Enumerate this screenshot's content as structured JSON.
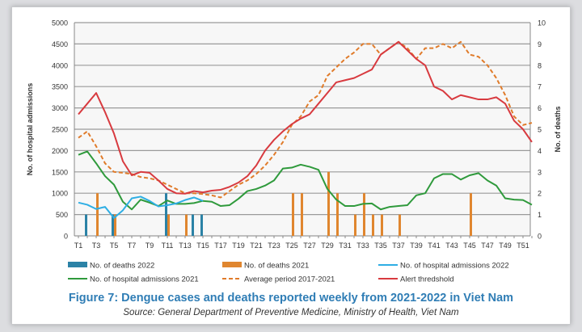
{
  "chart_data": {
    "type": "bar+line",
    "title": "Figure 7: Dengue cases and deaths reported weekly from 2021-2022 in Viet Nam",
    "source": "Source: General Department of Preventive Medicine, Ministry of Health, Viet Nam",
    "ylabel": "No. of hospital admissions",
    "y2label": "No. of deaths",
    "ylim": [
      0,
      5000
    ],
    "y2lim": [
      0,
      10
    ],
    "yticks": [
      "0",
      "500",
      "1000",
      "1500",
      "2000",
      "2500",
      "3000",
      "3500",
      "4000",
      "4500",
      "5000"
    ],
    "y2ticks": [
      "0",
      "1",
      "2",
      "3",
      "4",
      "5",
      "6",
      "7",
      "8",
      "9",
      "10"
    ],
    "xticks": [
      "T1",
      "T3",
      "T5",
      "T7",
      "T9",
      "T11",
      "T13",
      "T15",
      "T17",
      "T19",
      "T21",
      "T23",
      "T25",
      "T27",
      "T29",
      "T31",
      "T33",
      "T35",
      "T37",
      "T39",
      "T41",
      "T43",
      "T45",
      "T47",
      "T49",
      "T51"
    ],
    "weeks": 52,
    "grid": true,
    "legend_position": "bottom",
    "bars": [
      {
        "name": "No. of deaths 2022",
        "color": "#2b82a6",
        "axis": "right",
        "values": {
          "2": 1,
          "5": 1,
          "11": 2,
          "14": 1,
          "15": 1
        }
      },
      {
        "name": "No. of deaths 2021",
        "color": "#e0862f",
        "axis": "right",
        "values": {
          "3": 2,
          "5": 1,
          "11": 1,
          "13": 1,
          "25": 2,
          "26": 2,
          "29": 3,
          "30": 2,
          "32": 1,
          "33": 2,
          "34": 1,
          "35": 1,
          "37": 1,
          "45": 2
        }
      }
    ],
    "series": [
      {
        "name": "No. of hospital admissions 2022",
        "color": "#2eaee4",
        "dash": false,
        "values": [
          780,
          730,
          630,
          680,
          420,
          600,
          880,
          920,
          820,
          690,
          720,
          760,
          840,
          900,
          820
        ]
      },
      {
        "name": "No. of hospital admissions 2021",
        "color": "#2f9a3c",
        "dash": false,
        "values": [
          1900,
          1980,
          1700,
          1400,
          1200,
          800,
          620,
          850,
          780,
          700,
          830,
          750,
          750,
          770,
          820,
          800,
          700,
          720,
          870,
          1050,
          1100,
          1180,
          1300,
          1580,
          1600,
          1670,
          1620,
          1550,
          1100,
          850,
          700,
          700,
          750,
          760,
          620,
          680,
          700,
          720,
          950,
          1000,
          1350,
          1450,
          1450,
          1320,
          1420,
          1470,
          1300,
          1180,
          880,
          850,
          840,
          730
        ]
      },
      {
        "name": "Average period 2017-2021",
        "color": "#e07b2a",
        "dash": true,
        "values": [
          2300,
          2450,
          2100,
          1700,
          1500,
          1480,
          1450,
          1380,
          1350,
          1300,
          1200,
          1100,
          1000,
          1000,
          980,
          950,
          900,
          1050,
          1200,
          1300,
          1450,
          1650,
          1900,
          2200,
          2600,
          2800,
          3150,
          3300,
          3750,
          3950,
          4150,
          4300,
          4500,
          4500,
          4250,
          4400,
          4550,
          4400,
          4150,
          4400,
          4400,
          4500,
          4400,
          4550,
          4250,
          4200,
          4000,
          3700,
          3300,
          2800,
          2600,
          2650
        ]
      },
      {
        "name": "Alert thredshold",
        "color": "#d83a3f",
        "dash": false,
        "values": [
          2850,
          3100,
          3350,
          2900,
          2400,
          1750,
          1420,
          1500,
          1480,
          1300,
          1100,
          1000,
          990,
          1050,
          1020,
          1060,
          1080,
          1150,
          1250,
          1400,
          1650,
          2000,
          2250,
          2450,
          2620,
          2750,
          2850,
          3100,
          3350,
          3600,
          3650,
          3700,
          3800,
          3900,
          4250,
          4400,
          4550,
          4350,
          4150,
          4000,
          3500,
          3400,
          3200,
          3300,
          3250,
          3200,
          3200,
          3250,
          3100,
          2700,
          2500,
          2200
        ]
      }
    ],
    "legend": [
      {
        "label": "No. of deaths 2022",
        "kind": "bar",
        "color": "#2b82a6"
      },
      {
        "label": "No. of deaths 2021",
        "kind": "bar",
        "color": "#e0862f"
      },
      {
        "label": "No. of hospital admissions 2022",
        "kind": "line",
        "color": "#2eaee4"
      },
      {
        "label": "No. of hospital admissions 2021",
        "kind": "line",
        "color": "#2f9a3c"
      },
      {
        "label": "Average period 2017-2021",
        "kind": "dash",
        "color": "#e07b2a"
      },
      {
        "label": "Alert thredshold",
        "kind": "line",
        "color": "#d83a3f"
      }
    ]
  }
}
